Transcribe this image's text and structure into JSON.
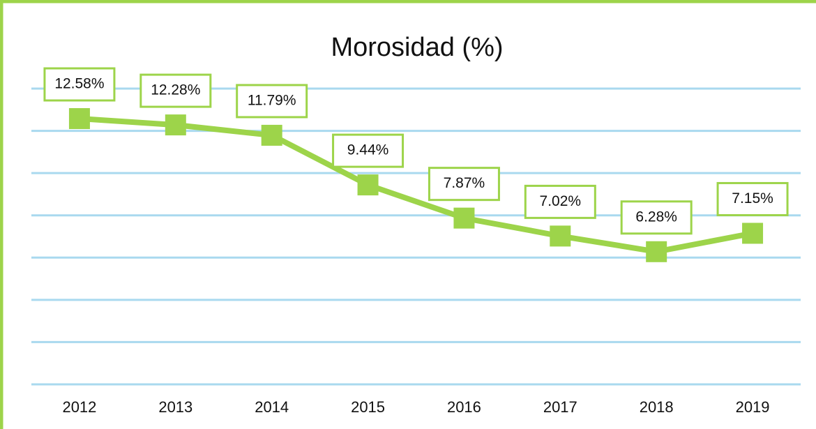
{
  "chart_data": {
    "type": "line",
    "title": "Morosidad (%)",
    "categories": [
      "2012",
      "2013",
      "2014",
      "2015",
      "2016",
      "2017",
      "2018",
      "2019"
    ],
    "series": [
      {
        "color": "#9dd44a",
        "values": [
          12.58,
          12.28,
          11.79,
          9.44,
          7.87,
          7.02,
          6.28,
          7.15
        ],
        "value_labels": [
          "12.58%",
          "12.28%",
          "11.79%",
          "9.44%",
          "7.87%",
          "7.02%",
          "6.28%",
          "7.15%"
        ]
      }
    ],
    "ylim": [
      0,
      14
    ],
    "yticks": [
      0,
      2,
      4,
      6,
      8,
      10,
      12,
      14
    ],
    "grid": true,
    "grid_color": "#a9d9ef"
  }
}
